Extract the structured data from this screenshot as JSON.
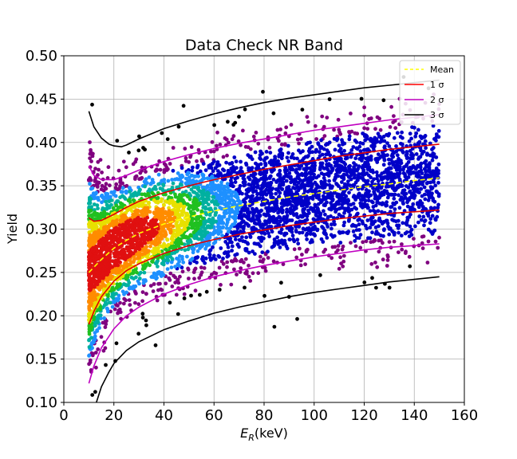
{
  "chart_data": {
    "type": "scatter",
    "title": "Data Check NR Band",
    "xlabel_main": "E",
    "xlabel_sub": "R",
    "xlabel_unit": "(keV)",
    "ylabel": "Yield",
    "xlim": [
      0,
      160
    ],
    "ylim": [
      0.1,
      0.5
    ],
    "xticks": [
      "0",
      "20",
      "40",
      "60",
      "80",
      "100",
      "120",
      "140",
      "160"
    ],
    "yticks": [
      "0.10",
      "0.15",
      "0.20",
      "0.25",
      "0.30",
      "0.35",
      "0.40",
      "0.45",
      "0.50"
    ],
    "grid": true,
    "legend_position": "top-right",
    "legend": [
      {
        "label": "Mean",
        "color": "#ffff00",
        "dash": true
      },
      {
        "label": "1 σ",
        "color": "#ff0000",
        "dash": false
      },
      {
        "label": "2 σ",
        "color": "#c000c0",
        "dash": false
      },
      {
        "label": "3 σ",
        "color": "#000000",
        "dash": false
      }
    ],
    "colors": {
      "mean": "#ffff00",
      "sigma1": "#e00000",
      "sigma2": "#c000c0",
      "sigma3": "#000000",
      "density_low": "#0000c8",
      "density_mid": "#00c000",
      "density_high": "#ff0000",
      "outlier": "#000000",
      "sparse": "#800080"
    },
    "series": [
      {
        "name": "Mean",
        "x": [
          10,
          15,
          20,
          25,
          30,
          40,
          50,
          60,
          70,
          80,
          90,
          100,
          110,
          120,
          130,
          140,
          150
        ],
        "y": [
          0.25,
          0.265,
          0.278,
          0.287,
          0.295,
          0.306,
          0.314,
          0.321,
          0.327,
          0.332,
          0.337,
          0.341,
          0.345,
          0.349,
          0.352,
          0.356,
          0.359
        ]
      },
      {
        "name": "1 σ upper",
        "x": [
          10,
          12,
          15,
          20,
          25,
          30,
          40,
          50,
          60,
          70,
          80,
          90,
          100,
          110,
          120,
          130,
          140,
          150
        ],
        "y": [
          0.313,
          0.309,
          0.31,
          0.317,
          0.325,
          0.332,
          0.342,
          0.35,
          0.357,
          0.363,
          0.369,
          0.374,
          0.379,
          0.384,
          0.388,
          0.392,
          0.395,
          0.398
        ]
      },
      {
        "name": "1 σ lower",
        "x": [
          10,
          12,
          15,
          20,
          25,
          30,
          40,
          50,
          60,
          70,
          80,
          90,
          100,
          110,
          120,
          130,
          140,
          150
        ],
        "y": [
          0.19,
          0.205,
          0.222,
          0.24,
          0.252,
          0.26,
          0.272,
          0.281,
          0.288,
          0.294,
          0.299,
          0.304,
          0.308,
          0.312,
          0.315,
          0.318,
          0.32,
          0.322
        ]
      },
      {
        "name": "2 σ upper",
        "x": [
          10,
          12,
          15,
          20,
          25,
          30,
          40,
          50,
          60,
          70,
          80,
          90,
          100,
          110,
          120,
          130,
          140,
          150
        ],
        "y": [
          0.373,
          0.362,
          0.357,
          0.357,
          0.362,
          0.368,
          0.378,
          0.386,
          0.393,
          0.399,
          0.404,
          0.409,
          0.414,
          0.418,
          0.422,
          0.426,
          0.429,
          0.432
        ]
      },
      {
        "name": "2 σ lower",
        "x": [
          10,
          12,
          15,
          20,
          25,
          30,
          40,
          50,
          60,
          70,
          80,
          90,
          100,
          110,
          120,
          130,
          140,
          150
        ],
        "y": [
          0.122,
          0.142,
          0.163,
          0.185,
          0.2,
          0.21,
          0.225,
          0.236,
          0.245,
          0.252,
          0.258,
          0.263,
          0.268,
          0.272,
          0.276,
          0.279,
          0.281,
          0.283
        ]
      },
      {
        "name": "3 σ upper",
        "x": [
          10,
          12,
          15,
          18,
          20,
          23,
          25,
          30,
          40,
          50,
          60,
          70,
          80,
          90,
          100,
          110,
          120,
          130,
          140,
          150
        ],
        "y": [
          0.436,
          0.418,
          0.405,
          0.398,
          0.396,
          0.395,
          0.397,
          0.404,
          0.416,
          0.425,
          0.433,
          0.44,
          0.446,
          0.451,
          0.455,
          0.459,
          0.463,
          0.466,
          0.469,
          0.472
        ]
      },
      {
        "name": "3 σ lower",
        "x": [
          13,
          15,
          18,
          20,
          25,
          30,
          40,
          50,
          60,
          70,
          80,
          90,
          100,
          110,
          120,
          130,
          140,
          150
        ],
        "y": [
          0.1,
          0.118,
          0.135,
          0.145,
          0.16,
          0.17,
          0.184,
          0.194,
          0.203,
          0.21,
          0.216,
          0.222,
          0.227,
          0.231,
          0.235,
          0.239,
          0.242,
          0.245
        ]
      }
    ]
  }
}
